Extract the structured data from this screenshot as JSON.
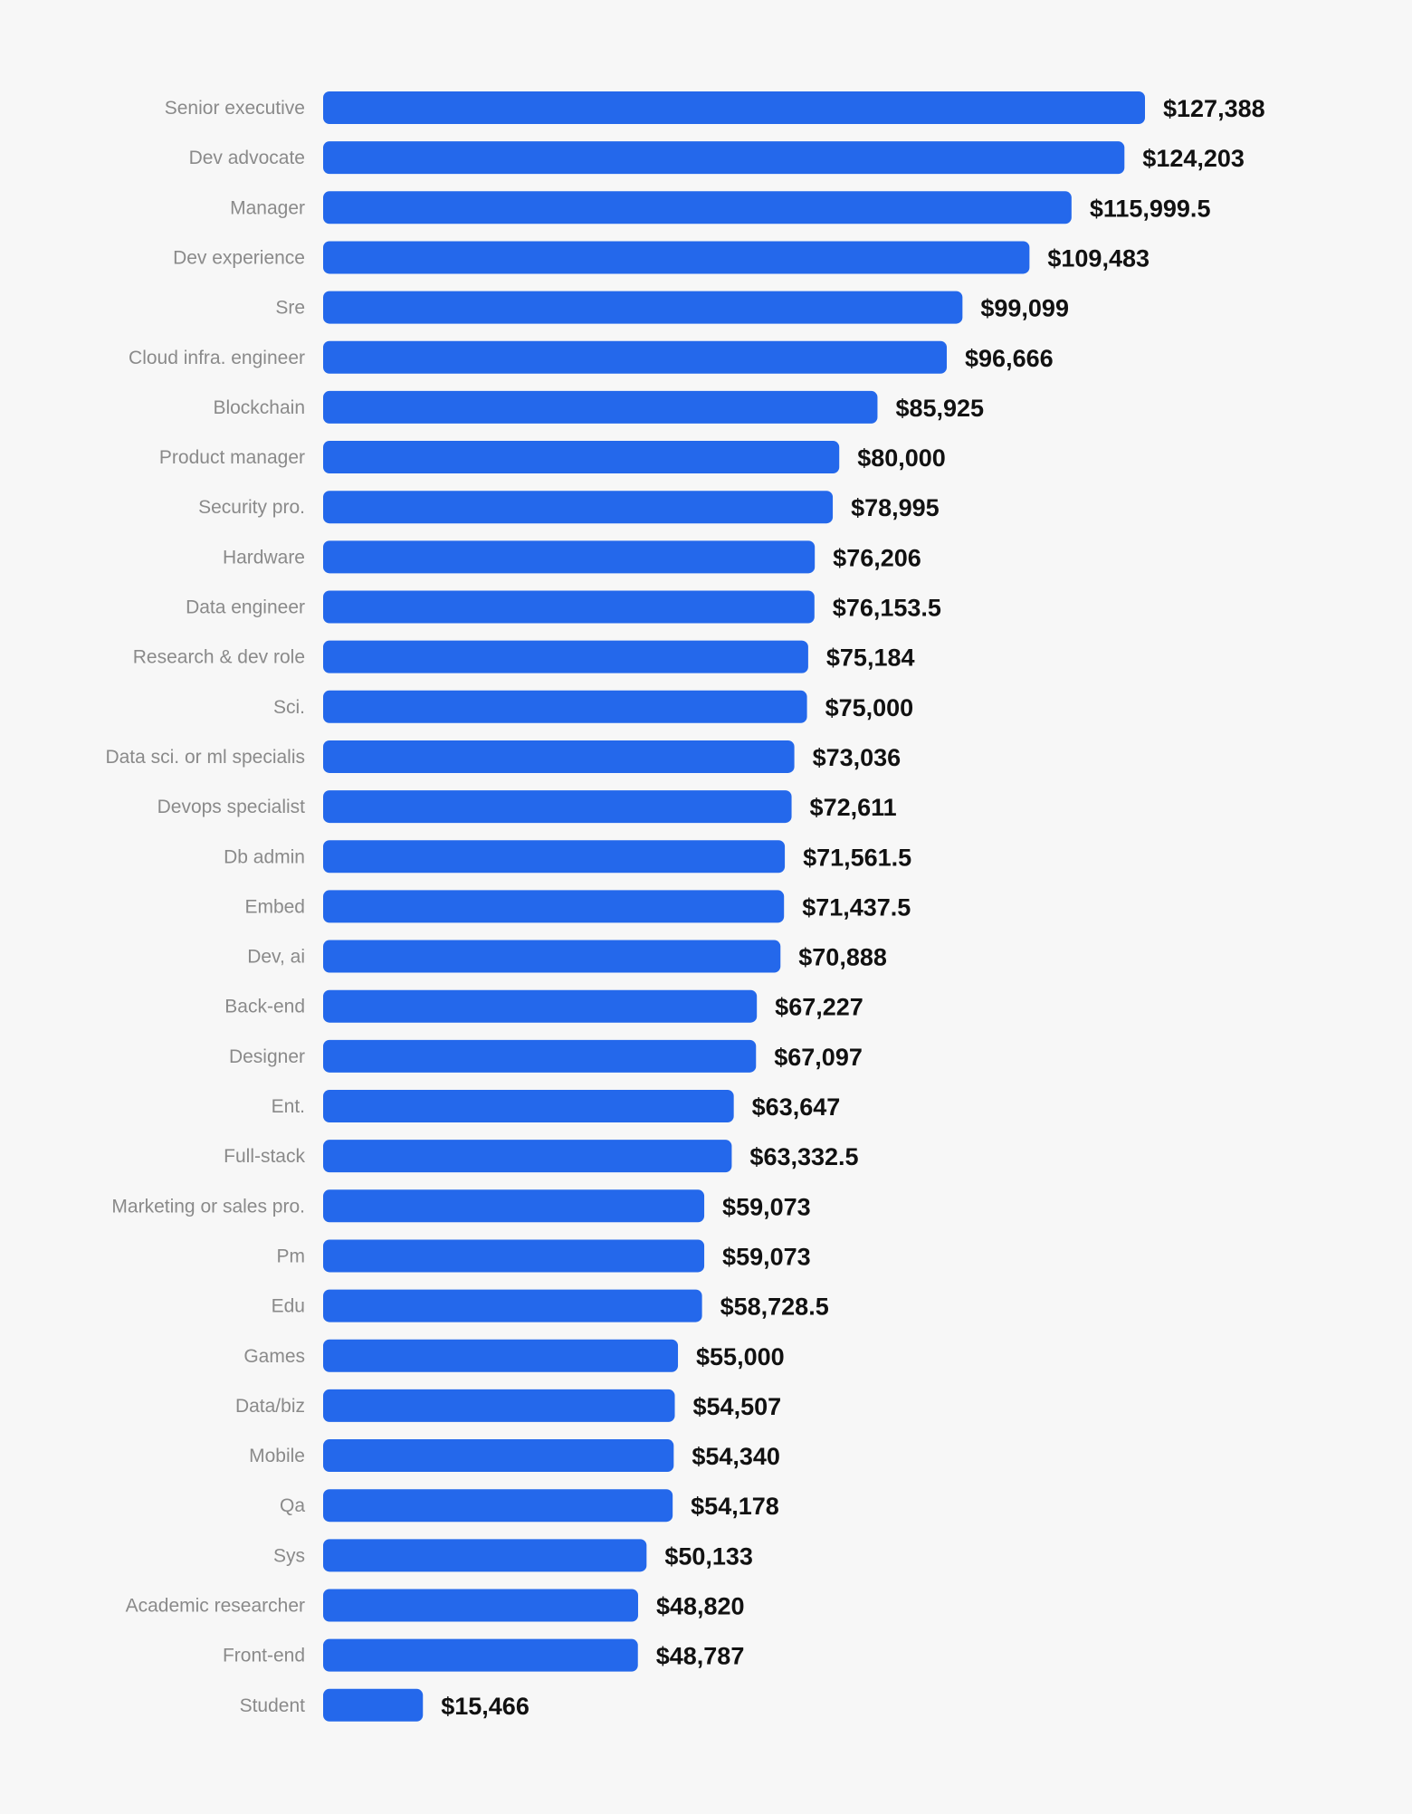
{
  "chart_data": {
    "type": "bar",
    "orientation": "horizontal",
    "title": "",
    "xlabel": "",
    "ylabel": "",
    "grid": false,
    "bar_color": "#2468eb",
    "background_color": "#f7f7f7",
    "value_prefix": "$",
    "categories": [
      "Senior executive",
      "Dev advocate",
      "Manager",
      "Dev experience",
      "Sre",
      "Cloud infra. engineer",
      "Blockchain",
      "Product manager",
      "Security pro.",
      "Hardware",
      "Data engineer",
      "Research & dev role",
      "Sci.",
      "Data sci. or ml specialis",
      "Devops specialist",
      "Db admin",
      "Embed",
      "Dev, ai",
      "Back-end",
      "Designer",
      "Ent.",
      "Full-stack",
      "Marketing or sales pro.",
      "Pm",
      "Edu",
      "Games",
      "Data/biz",
      "Mobile",
      "Qa",
      "Sys",
      "Academic researcher",
      "Front-end",
      "Student"
    ],
    "values": [
      127388,
      124203,
      115999.5,
      109483,
      99099,
      96666,
      85925,
      80000,
      78995,
      76206,
      76153.5,
      75184,
      75000,
      73036,
      72611,
      71561.5,
      71437.5,
      70888,
      67227,
      67097,
      63647,
      63332.5,
      59073,
      59073,
      58728.5,
      55000,
      54507,
      54340,
      54178,
      50133,
      48820,
      48787,
      15466
    ],
    "value_labels": [
      "$127,388",
      "$124,203",
      "$115,999.5",
      "$109,483",
      "$99,099",
      "$96,666",
      "$85,925",
      "$80,000",
      "$78,995",
      "$76,206",
      "$76,153.5",
      "$75,184",
      "$75,000",
      "$73,036",
      "$72,611",
      "$71,561.5",
      "$71,437.5",
      "$70,888",
      "$67,227",
      "$67,097",
      "$63,647",
      "$63,332.5",
      "$59,073",
      "$59,073",
      "$58,728.5",
      "$55,000",
      "$54,507",
      "$54,340",
      "$54,178",
      "$50,133",
      "$48,820",
      "$48,787",
      "$15,466"
    ]
  }
}
